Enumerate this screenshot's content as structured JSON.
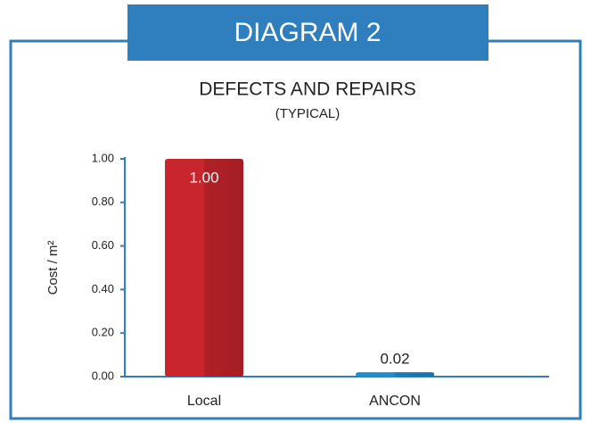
{
  "header": "DIAGRAM 2",
  "chart_data": {
    "type": "bar",
    "title": "DEFECTS AND REPAIRS",
    "subtitle": "(TYPICAL)",
    "y_label": "Cost / m²",
    "categories": [
      "Local",
      "ANCON"
    ],
    "values": [
      1.0,
      0.02
    ],
    "value_labels": [
      "1.00",
      "0.02"
    ],
    "colors": [
      "#c8252c",
      "#1b8ed2"
    ],
    "ylim": [
      0,
      1
    ],
    "yticks": [
      {
        "value": 0,
        "label": "0.00"
      },
      {
        "value": 0.2,
        "label": "0.20"
      },
      {
        "value": 0.4,
        "label": "0.40"
      },
      {
        "value": 0.6,
        "label": "0.60"
      },
      {
        "value": 0.8,
        "label": "0.80"
      },
      {
        "value": 1,
        "label": "1.00"
      }
    ]
  }
}
